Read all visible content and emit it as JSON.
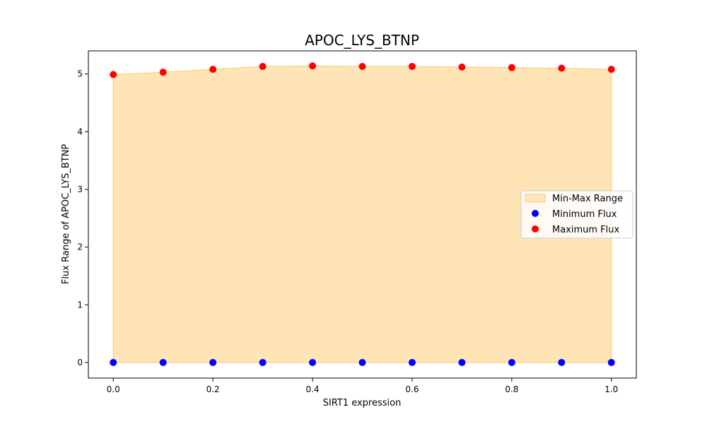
{
  "chart_data": {
    "type": "scatter",
    "title": "APOC_LYS_BTNP",
    "xlabel": "SIRT1 expression",
    "ylabel": "Flux Range of APOC_LYS_BTNP",
    "xlim": [
      -0.05,
      1.05
    ],
    "ylim": [
      -0.27,
      5.4
    ],
    "xticks": [
      "0.0",
      "0.2",
      "0.4",
      "0.6",
      "0.8",
      "1.0"
    ],
    "yticks": [
      "0",
      "1",
      "2",
      "3",
      "4",
      "5"
    ],
    "x": [
      0.0,
      0.1,
      0.2,
      0.3,
      0.4,
      0.5,
      0.6,
      0.7,
      0.8,
      0.9,
      1.0
    ],
    "series": [
      {
        "name": "Minimum Flux",
        "color": "#0000ff",
        "values": [
          0,
          0,
          0,
          0,
          0,
          0,
          0,
          0,
          0,
          0,
          0
        ]
      },
      {
        "name": "Maximum Flux",
        "color": "#ff0000",
        "values": [
          4.99,
          5.03,
          5.08,
          5.13,
          5.14,
          5.13,
          5.13,
          5.12,
          5.11,
          5.1,
          5.08
        ]
      }
    ],
    "fill": {
      "name": "Min-Max Range",
      "color": "#ffe4b5",
      "edge": "#f5c97a"
    },
    "legend": "center-right",
    "grid": false
  }
}
